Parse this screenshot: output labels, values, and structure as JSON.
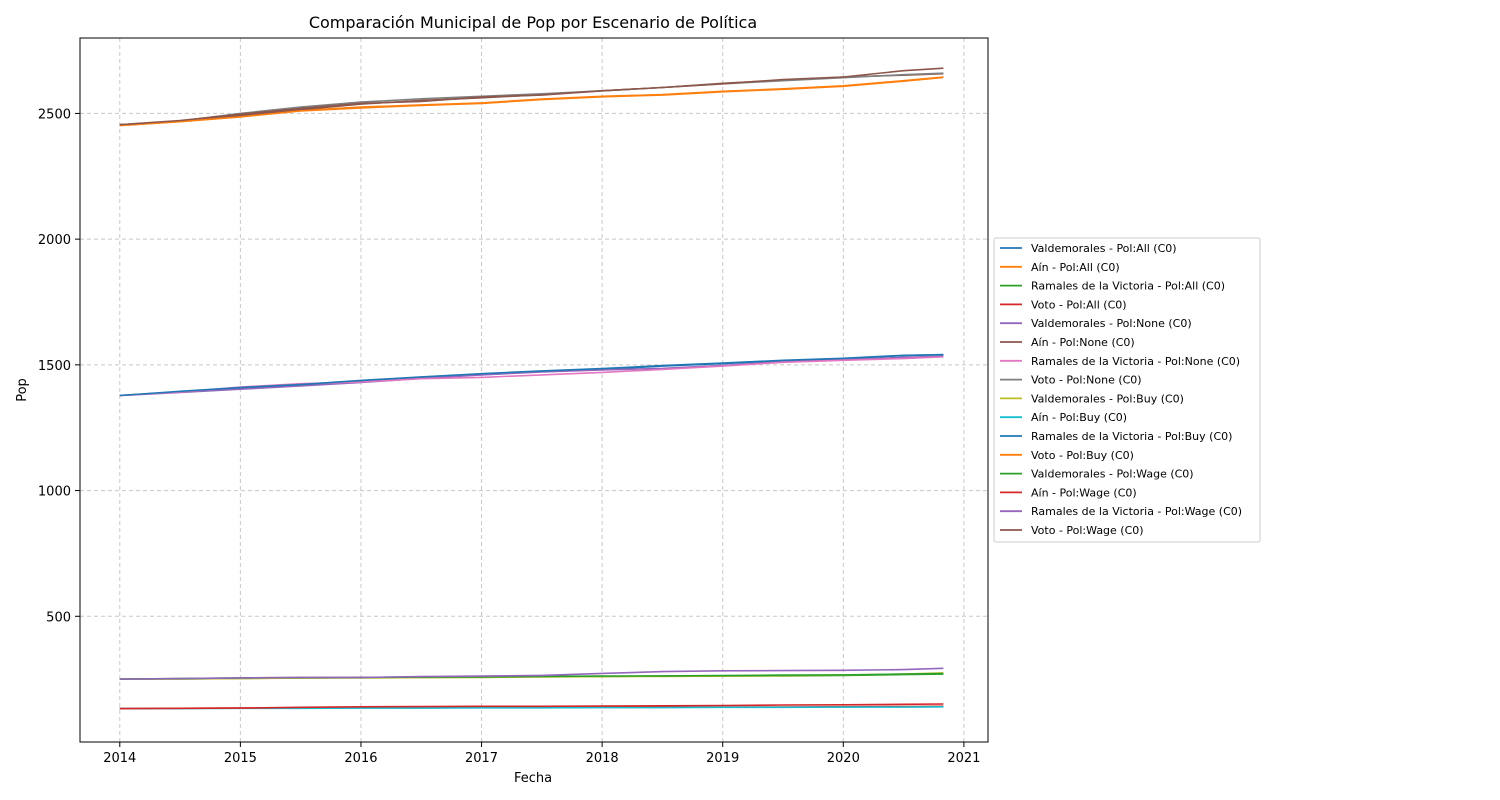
{
  "chart_data": {
    "type": "line",
    "title": "Comparación Municipal de Pop por Escenario de Política",
    "xlabel": "Fecha",
    "ylabel": "Pop",
    "xlim": [
      2013.67,
      2021.2
    ],
    "ylim": [
      0,
      2800
    ],
    "x_ticks": [
      2014,
      2015,
      2016,
      2017,
      2018,
      2019,
      2020,
      2021
    ],
    "y_ticks": [
      500,
      1000,
      1500,
      2000,
      2500
    ],
    "grid": true,
    "legend_position": "right, outside plot",
    "x": [
      2014.0,
      2014.5,
      2015.0,
      2015.5,
      2016.0,
      2016.5,
      2017.0,
      2017.5,
      2018.0,
      2018.5,
      2019.0,
      2019.5,
      2020.0,
      2020.5,
      2020.83
    ],
    "series": [
      {
        "name": "Valdemorales - Pol:All (C0)",
        "color": "#1f77b4",
        "values": [
          1378,
          1393,
          1408,
          1420,
          1435,
          1450,
          1462,
          1474,
          1482,
          1495,
          1505,
          1516,
          1524,
          1537,
          1541
        ]
      },
      {
        "name": "Aín - Pol:All (C0)",
        "color": "#ff7f0e",
        "values": [
          2452,
          2468,
          2488,
          2512,
          2525,
          2534,
          2542,
          2557,
          2568,
          2575,
          2588,
          2598,
          2610,
          2630,
          2645
        ]
      },
      {
        "name": "Ramales de la Victoria - Pol:All (C0)",
        "color": "#2ca02c",
        "values": [
          250,
          251,
          253,
          255,
          256,
          257,
          258,
          260,
          261,
          262,
          263,
          263,
          265,
          268,
          270
        ]
      },
      {
        "name": "Voto - Pol:All (C0)",
        "color": "#d62728",
        "values": [
          133,
          134,
          135,
          135,
          136,
          136,
          137,
          137,
          138,
          138,
          139,
          139,
          140,
          141,
          142
        ]
      },
      {
        "name": "Valdemorales - Pol:None (C0)",
        "color": "#9467bd",
        "values": [
          1378,
          1390,
          1403,
          1416,
          1430,
          1446,
          1460,
          1472,
          1480,
          1486,
          1498,
          1512,
          1520,
          1530,
          1534
        ]
      },
      {
        "name": "Aín - Pol:None (C0)",
        "color": "#8c564b",
        "values": [
          2455,
          2470,
          2492,
          2515,
          2537,
          2552,
          2562,
          2575,
          2590,
          2603,
          2620,
          2632,
          2645,
          2652,
          2658
        ]
      },
      {
        "name": "Ramales de la Victoria - Pol:None (C0)",
        "color": "#e377c2",
        "values": [
          1378,
          1392,
          1412,
          1425,
          1432,
          1445,
          1450,
          1460,
          1470,
          1482,
          1495,
          1510,
          1518,
          1525,
          1532
        ]
      },
      {
        "name": "Voto - Pol:None (C0)",
        "color": "#7f7f7f",
        "values": [
          2455,
          2470,
          2500,
          2525,
          2545,
          2558,
          2568,
          2578,
          2590,
          2603,
          2618,
          2630,
          2642,
          2654,
          2660
        ]
      },
      {
        "name": "Valdemorales - Pol:Buy (C0)",
        "color": "#bcbd22",
        "values": [
          250,
          251,
          252,
          254,
          255,
          256,
          257,
          259,
          260,
          261,
          262,
          264,
          266,
          270,
          275
        ]
      },
      {
        "name": "Aín - Pol:Buy (C0)",
        "color": "#17becf",
        "values": [
          133,
          133,
          134,
          134,
          135,
          135,
          136,
          136,
          137,
          137,
          138,
          138,
          139,
          139,
          140
        ]
      },
      {
        "name": "Ramales de la Victoria - Pol:Buy (C0)",
        "color": "#1f77b4",
        "values": [
          1378,
          1395,
          1410,
          1422,
          1438,
          1452,
          1465,
          1476,
          1485,
          1497,
          1507,
          1518,
          1526,
          1538,
          1540
        ]
      },
      {
        "name": "Voto - Pol:Buy (C0)",
        "color": "#ff7f0e",
        "values": [
          2452,
          2467,
          2486,
          2510,
          2522,
          2532,
          2540,
          2555,
          2566,
          2573,
          2586,
          2596,
          2608,
          2628,
          2643
        ]
      },
      {
        "name": "Valdemorales - Pol:Wage (C0)",
        "color": "#2ca02c",
        "values": [
          250,
          252,
          255,
          256,
          257,
          258,
          259,
          261,
          262,
          263,
          264,
          266,
          267,
          270,
          272
        ]
      },
      {
        "name": "Aín - Pol:Wage (C0)",
        "color": "#d62728",
        "values": [
          133,
          134,
          135,
          138,
          140,
          141,
          142,
          142,
          143,
          144,
          145,
          147,
          148,
          150,
          151
        ]
      },
      {
        "name": "Ramales de la Victoria - Pol:Wage (C0)",
        "color": "#9467bd",
        "values": [
          250,
          252,
          255,
          257,
          257,
          260,
          262,
          265,
          273,
          280,
          283,
          284,
          285,
          288,
          293
        ]
      },
      {
        "name": "Voto - Pol:Wage (C0)",
        "color": "#8c564b",
        "values": [
          2455,
          2472,
          2497,
          2520,
          2540,
          2548,
          2565,
          2573,
          2590,
          2603,
          2618,
          2635,
          2645,
          2670,
          2680
        ]
      }
    ]
  }
}
